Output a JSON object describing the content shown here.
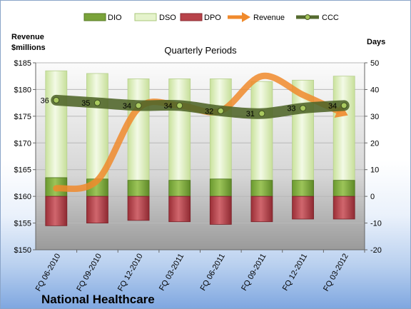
{
  "chart_data": {
    "type": "bar",
    "title": "Quarterly Periods",
    "company": "National Healthcare",
    "y_left_label": [
      "Revenue",
      "$millions"
    ],
    "y_right_label": "Days",
    "y_left_lim": [
      150,
      185
    ],
    "y_left_ticks": [
      "$150",
      "$155",
      "$160",
      "$165",
      "$170",
      "$175",
      "$180",
      "$185"
    ],
    "y_right_lim": [
      -20,
      50
    ],
    "y_right_ticks": [
      "-20",
      "-10",
      "0",
      "10",
      "20",
      "30",
      "40",
      "50"
    ],
    "categories": [
      "FQ 06-2010",
      "FQ 09-2010",
      "FQ 12-2010",
      "FQ 03-2011",
      "FQ 06-2011",
      "FQ 09-2011",
      "FQ 12-2011",
      "FQ 03-2012"
    ],
    "series": [
      {
        "name": "DIO",
        "axis": "right",
        "kind": "stacked-bar",
        "color": "#7aa33a",
        "values": [
          7,
          6.5,
          6,
          6,
          6.5,
          6,
          6,
          6
        ]
      },
      {
        "name": "DSO",
        "axis": "right",
        "kind": "stacked-bar",
        "color": "#d9edb8",
        "values": [
          40,
          39.5,
          38,
          38,
          37.5,
          37,
          37.5,
          39
        ]
      },
      {
        "name": "DPO",
        "axis": "right",
        "kind": "negative-bar",
        "color": "#b8434a",
        "values": [
          -11,
          -10,
          -9,
          -9.5,
          -10.5,
          -9.5,
          -8.5,
          -8.5
        ]
      },
      {
        "name": "Revenue",
        "axis": "left",
        "kind": "line",
        "color": "#f08a2c",
        "values": [
          161.5,
          163,
          176.5,
          177,
          176,
          182.5,
          179,
          175.5
        ]
      },
      {
        "name": "CCC",
        "axis": "right",
        "kind": "line",
        "color": "#556b2f",
        "values": [
          36,
          35,
          34,
          34,
          32,
          31,
          33,
          34
        ],
        "labels": [
          "36",
          "35",
          "34",
          "34",
          "32",
          "31",
          "33",
          "34"
        ]
      }
    ],
    "legend_position": "top",
    "grid": true
  }
}
